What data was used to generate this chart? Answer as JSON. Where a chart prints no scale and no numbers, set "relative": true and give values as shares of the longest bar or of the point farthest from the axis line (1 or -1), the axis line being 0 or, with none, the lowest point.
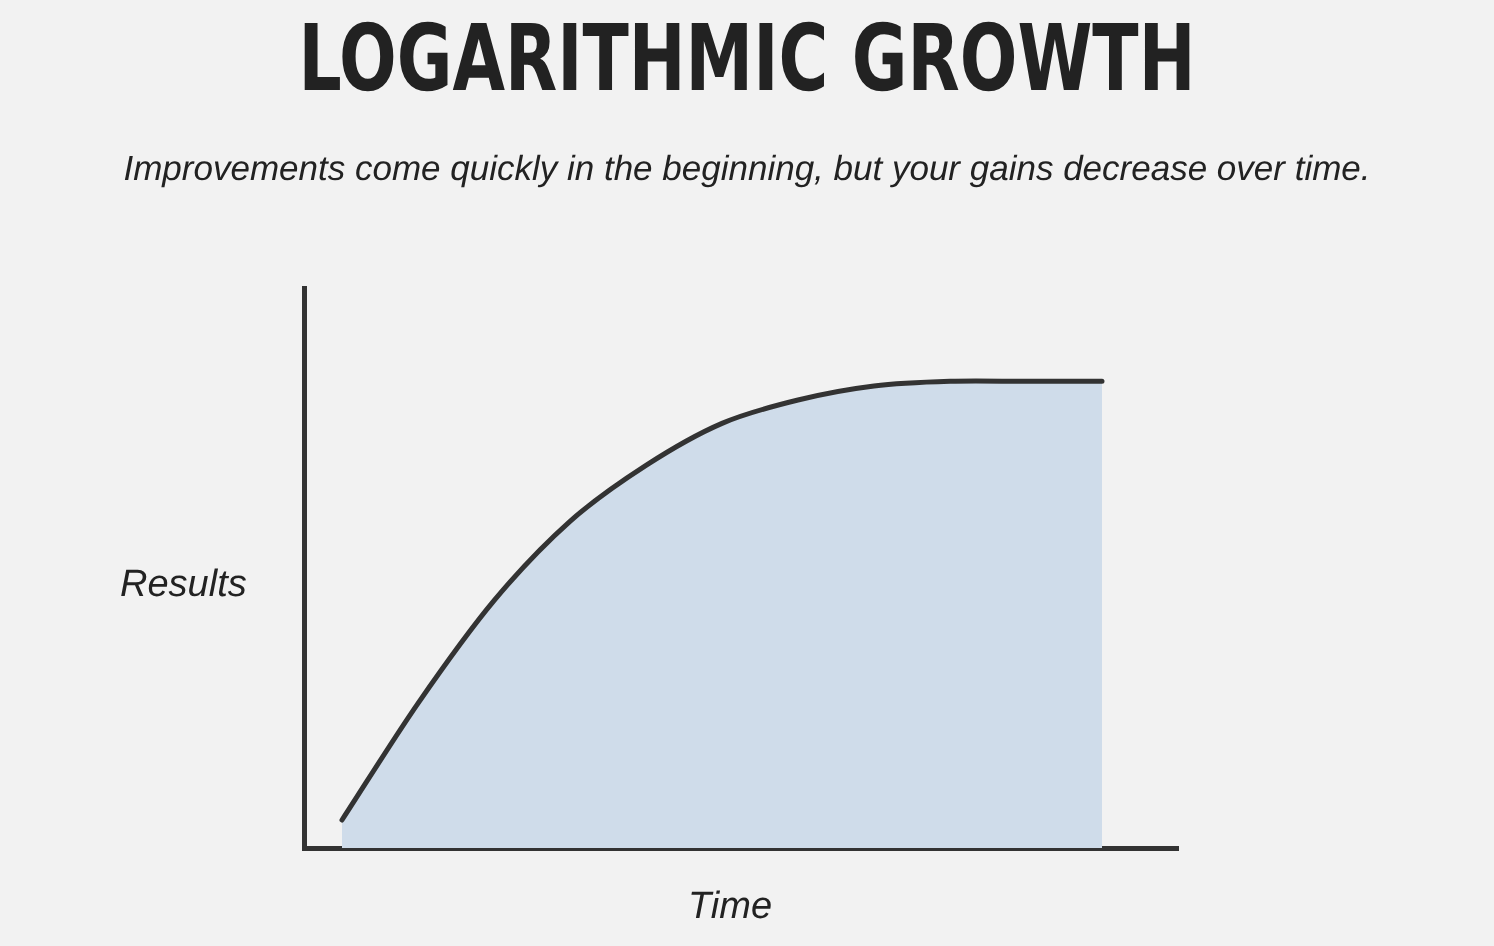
{
  "chart_data": {
    "type": "area",
    "title": "LOGARITHMIC GROWTH",
    "subtitle": "Improvements come quickly in the beginning, but your gains decrease over time.",
    "xlabel": "Time",
    "ylabel": "Results",
    "relative": true,
    "categories": [
      null,
      null,
      null,
      null,
      null,
      null,
      null,
      null,
      null,
      null,
      null
    ],
    "series": [
      {
        "color": "#cfdcea",
        "values": [
          0.06,
          0.31,
          0.53,
          0.7,
          0.82,
          0.91,
          0.96,
          0.99,
          1.0,
          1.0,
          1.0
        ]
      }
    ]
  }
}
